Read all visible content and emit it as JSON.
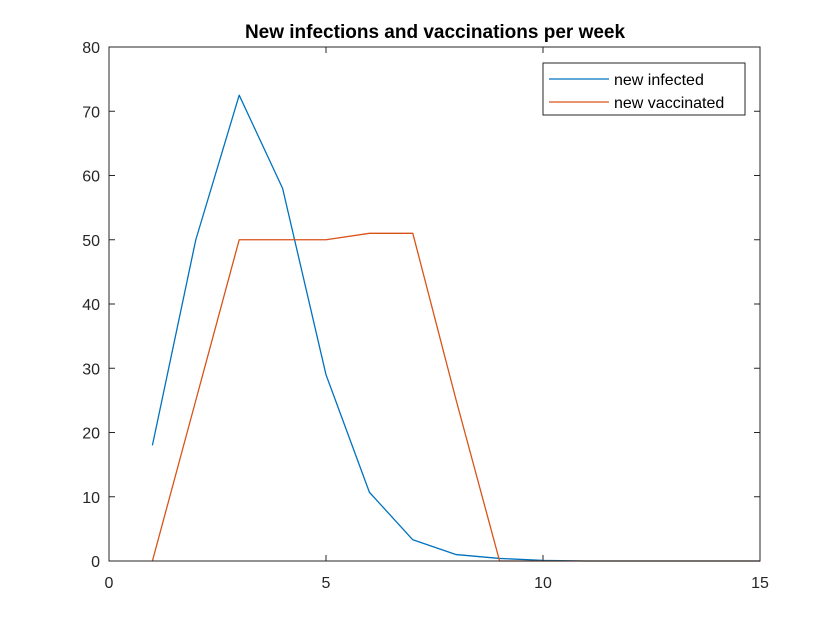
{
  "chart_data": {
    "type": "line",
    "title": "New infections and vaccinations per week",
    "xlabel": "",
    "ylabel": "",
    "xlim": [
      0,
      15
    ],
    "ylim": [
      0,
      80
    ],
    "xticks": [
      "0",
      "5",
      "10",
      "15"
    ],
    "yticks": [
      "0",
      "10",
      "20",
      "30",
      "40",
      "50",
      "60",
      "70",
      "80"
    ],
    "grid": false,
    "legend_position": "top-right",
    "series": [
      {
        "name": "new infected",
        "color": "#0072BD",
        "x": [
          1,
          2,
          3,
          4,
          5,
          6,
          7,
          8,
          9,
          10,
          11,
          12,
          13,
          14,
          15
        ],
        "y": [
          18,
          50,
          72.5,
          58,
          29,
          10.7,
          3.3,
          1,
          0.4,
          0.1,
          0,
          0,
          0,
          0,
          0
        ]
      },
      {
        "name": "new vaccinated",
        "color": "#D95319",
        "x": [
          1,
          2,
          3,
          4,
          5,
          6,
          7,
          8,
          9,
          10,
          11,
          12,
          13,
          14,
          15
        ],
        "y": [
          0,
          25,
          50,
          50,
          50,
          51,
          51,
          25,
          0,
          0,
          0,
          0,
          0,
          0,
          0
        ]
      }
    ]
  }
}
